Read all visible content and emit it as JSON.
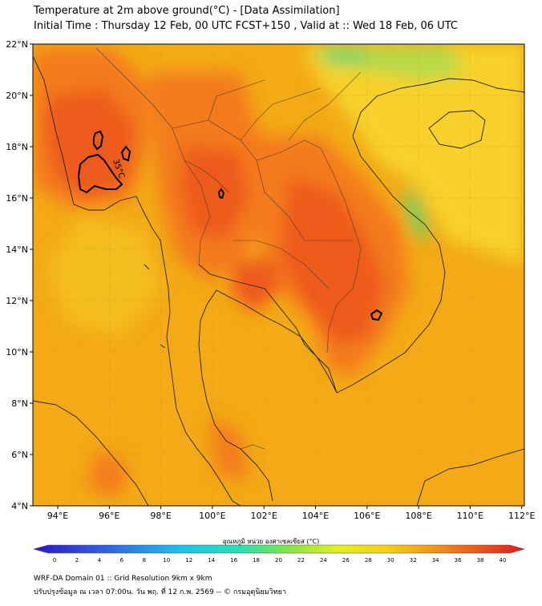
{
  "header": {
    "line1": "Temperature at 2m above ground(°C) - [Data Assimilation]",
    "line2": "Initial Time : Thursday 12 Feb, 00 UTC FCST+150 , Valid at :: Wed 18 Feb, 06 UTC"
  },
  "map": {
    "lat_labels": [
      "22°N",
      "20°N",
      "18°N",
      "16°N",
      "14°N",
      "12°N",
      "10°N",
      "8°N",
      "6°N",
      "4°N"
    ],
    "lon_labels": [
      "94°E",
      "96°E",
      "98°E",
      "100°E",
      "102°E",
      "104°E",
      "106°E",
      "108°E",
      "110°E",
      "112°E"
    ],
    "contour_label": "35°C",
    "colors": {
      "base": "#f3aa16",
      "warm": "#f47a1a",
      "hot": "#ee5a1c",
      "cool": "#f7d12a",
      "mild": "#b8d94a",
      "green": "#5cd86e"
    }
  },
  "colorbar": {
    "title": "อุณหภูมิ หน่วย องศาเซลเซียส (°C)",
    "ticks": [
      "0",
      "2",
      "4",
      "6",
      "8",
      "10",
      "12",
      "14",
      "16",
      "18",
      "20",
      "22",
      "24",
      "26",
      "28",
      "30",
      "32",
      "34",
      "36",
      "38",
      "40"
    ]
  },
  "footer": {
    "line1": "WRF-DA Domain 01 :: Grid Resolution 9km x 9km",
    "line2": "ปรับปรุงข้อมูล ณ เวลา 07:00น. วัน พฤ. ที่ 12 ก.พ. 2569 -- © กรมอุตุนิยมวิทยา"
  }
}
